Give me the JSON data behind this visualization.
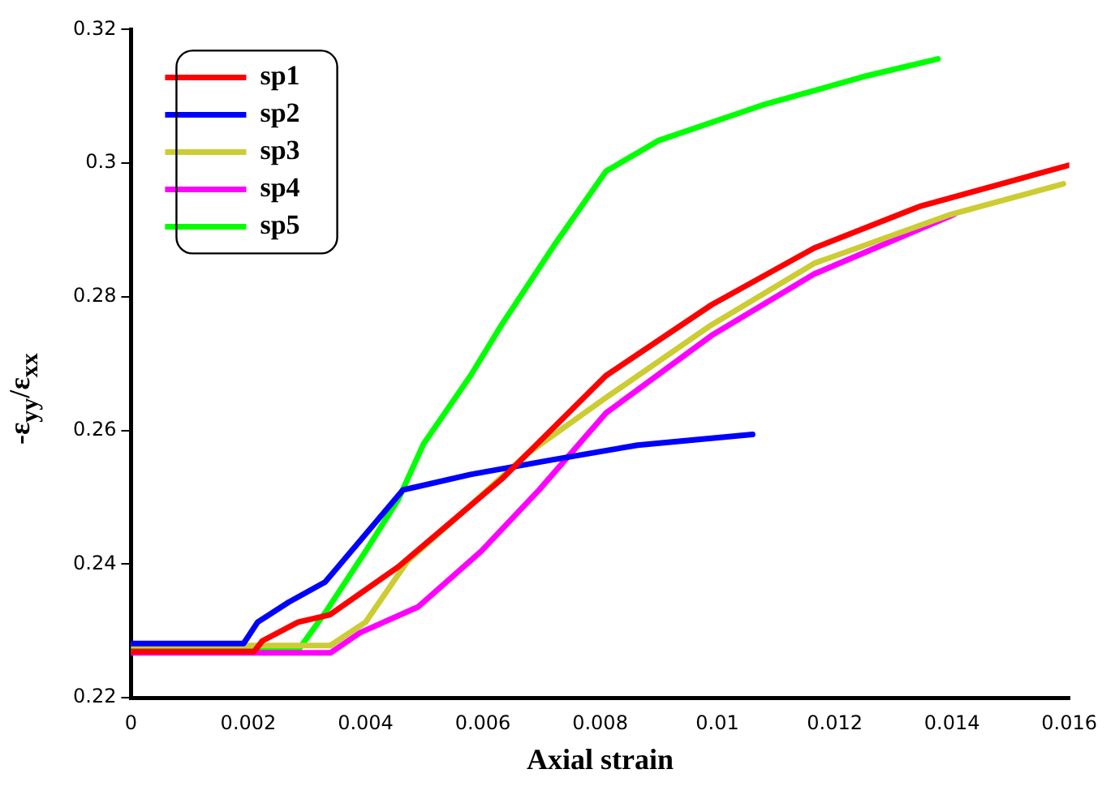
{
  "chart_data": {
    "type": "line",
    "xlabel": "Axial strain",
    "ylabel": "-ε$_{yy}$/ε$_{xx}$",
    "xlim": [
      0,
      0.016
    ],
    "ylim": [
      0.22,
      0.32
    ],
    "xticks": [
      0,
      0.002,
      0.004,
      0.006,
      0.008,
      0.01,
      0.012,
      0.014,
      0.016
    ],
    "yticks": [
      0.22,
      0.24,
      0.26,
      0.28,
      0.3,
      0.32
    ],
    "grid": false,
    "legend": "top left",
    "marker": "none",
    "line_style": "solid",
    "series": [
      {
        "name": "sp1",
        "color": "#ff0000",
        "x": [
          0,
          0.0021,
          0.00224,
          0.00285,
          0.00339,
          0.00456,
          0.00632,
          0.0081,
          0.0099,
          0.01165,
          0.01344,
          0.016
        ],
        "values": [
          0.2269,
          0.2269,
          0.2285,
          0.2313,
          0.2324,
          0.2396,
          0.2527,
          0.2682,
          0.2788,
          0.2873,
          0.2935,
          0.2997
        ]
      },
      {
        "name": "sp2",
        "color": "#0000ff",
        "x": [
          0,
          0.00192,
          0.00216,
          0.00269,
          0.00331,
          0.00384,
          0.00464,
          0.00579,
          0.00712,
          0.00864,
          0.0106
        ],
        "values": [
          0.2281,
          0.2281,
          0.2313,
          0.2343,
          0.2373,
          0.2428,
          0.2511,
          0.2534,
          0.2555,
          0.2578,
          0.2594
        ]
      },
      {
        "name": "sp3",
        "color": "#cccc33",
        "x": [
          0,
          0.0034,
          0.004,
          0.00472,
          0.00579,
          0.00677,
          0.0081,
          0.0099,
          0.01165,
          0.01397,
          0.0159
        ],
        "values": [
          0.2278,
          0.2278,
          0.2313,
          0.2405,
          0.2488,
          0.2566,
          0.2649,
          0.2758,
          0.285,
          0.2923,
          0.2969
        ]
      },
      {
        "name": "sp4",
        "color": "#ff00ff",
        "x": [
          0,
          0.0034,
          0.0039,
          0.0049,
          0.00597,
          0.00696,
          0.0081,
          0.0099,
          0.01165,
          0.01403
        ],
        "values": [
          0.2267,
          0.2267,
          0.2297,
          0.2336,
          0.2419,
          0.2511,
          0.2626,
          0.2742,
          0.2834,
          0.2923
        ]
      },
      {
        "name": "sp5",
        "color": "#00ff00",
        "x": [
          0,
          0.00285,
          0.00331,
          0.004,
          0.00456,
          0.00499,
          0.00579,
          0.00632,
          0.0072,
          0.0081,
          0.009,
          0.01077,
          0.01256,
          0.01376
        ],
        "values": [
          0.2271,
          0.2271,
          0.2327,
          0.2419,
          0.2497,
          0.258,
          0.2682,
          0.2758,
          0.2875,
          0.2988,
          0.3034,
          0.3087,
          0.3131,
          0.3156
        ]
      }
    ]
  }
}
